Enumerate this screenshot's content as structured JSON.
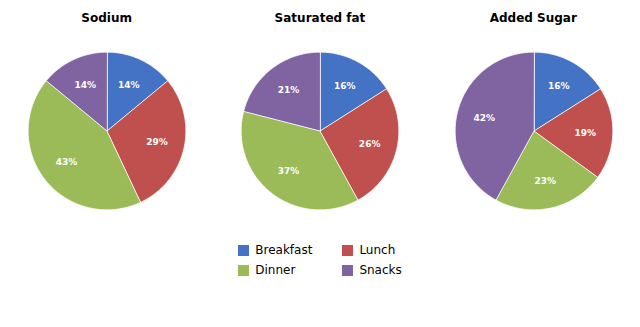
{
  "chart_data": [
    {
      "type": "pie",
      "title": "Sodium",
      "categories": [
        "Breakfast",
        "Lunch",
        "Dinner",
        "Snacks"
      ],
      "values": [
        14,
        29,
        43,
        14
      ],
      "value_labels": [
        "14%",
        "29%",
        "43%",
        "14%"
      ],
      "colors": [
        "#4472C4",
        "#C0504D",
        "#9BBB59",
        "#8064A2"
      ],
      "data_labels": true,
      "legend": "bottom"
    },
    {
      "type": "pie",
      "title": "Saturated fat",
      "categories": [
        "Breakfast",
        "Lunch",
        "Dinner",
        "Snacks"
      ],
      "values": [
        16,
        26,
        37,
        21
      ],
      "value_labels": [
        "16%",
        "26%",
        "37%",
        "21%"
      ],
      "colors": [
        "#4472C4",
        "#C0504D",
        "#9BBB59",
        "#8064A2"
      ],
      "data_labels": true,
      "legend": "bottom"
    },
    {
      "type": "pie",
      "title": "Added Sugar",
      "categories": [
        "Breakfast",
        "Lunch",
        "Dinner",
        "Snacks"
      ],
      "values": [
        16,
        19,
        23,
        42
      ],
      "value_labels": [
        "16%",
        "19%",
        "23%",
        "42%"
      ],
      "colors": [
        "#4472C4",
        "#C0504D",
        "#9BBB59",
        "#8064A2"
      ],
      "data_labels": true,
      "legend": "bottom"
    }
  ]
}
